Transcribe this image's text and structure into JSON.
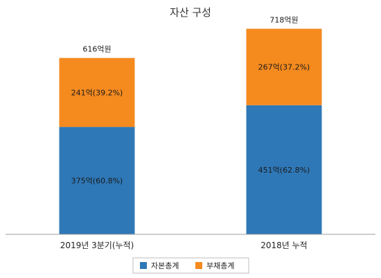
{
  "chart_data": {
    "type": "bar",
    "stacked": true,
    "title": "자산 구성",
    "categories": [
      "2019년 3분기(누적)",
      "2018년 누적"
    ],
    "series": [
      {
        "name": "자본총계",
        "color": "#2f78b7",
        "values": [
          375,
          451
        ],
        "labels": [
          "375억(60.8%)",
          "451억(62.8%)"
        ]
      },
      {
        "name": "부채총계",
        "color": "#f58a1f",
        "values": [
          241,
          267
        ],
        "labels": [
          "241억(39.2%)",
          "267억(37.2%)"
        ]
      }
    ],
    "totals": [
      616,
      718
    ],
    "total_labels": [
      "616억원",
      "718억원"
    ],
    "ylim": [
      0,
      770
    ],
    "grid": false,
    "legend_position": "bottom"
  }
}
